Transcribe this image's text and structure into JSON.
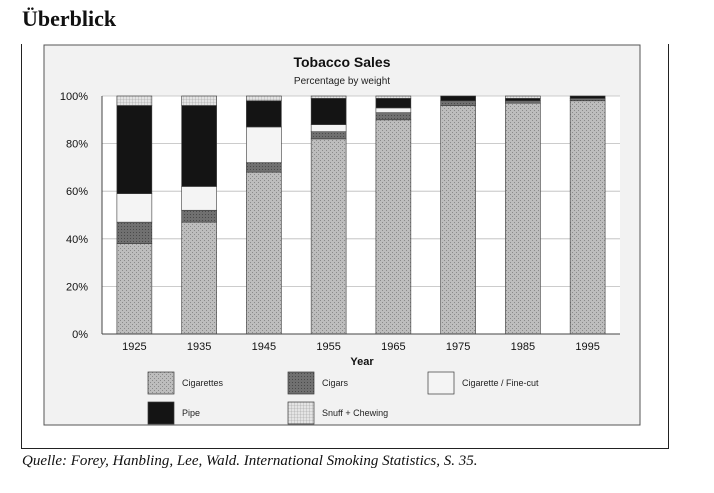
{
  "page": {
    "heading": "Überblick",
    "source": "Quelle: Forey, Hanbling, Lee, Wald. International Smoking Statistics, S. 35."
  },
  "chart_data": {
    "type": "bar",
    "stacked": true,
    "title": "Tobacco Sales",
    "subtitle": "Percentage by weight",
    "xlabel": "Year",
    "ylabel": "",
    "ylim": [
      0,
      100
    ],
    "y_ticks": [
      "0%",
      "20%",
      "40%",
      "60%",
      "80%",
      "100%"
    ],
    "grid": true,
    "legend_position": "bottom",
    "categories": [
      "1925",
      "1935",
      "1945",
      "1955",
      "1965",
      "1975",
      "1985",
      "1995"
    ],
    "series": [
      {
        "name": "Cigarettes",
        "color": "#b9b9b9",
        "values": [
          38,
          47,
          68,
          82,
          90,
          96,
          97,
          98
        ]
      },
      {
        "name": "Cigars",
        "color": "#6e6e6e",
        "values": [
          9,
          5,
          4,
          3,
          3,
          2,
          1,
          1
        ]
      },
      {
        "name": "Cigarette / Fine-cut",
        "color": "#f4f4f4",
        "values": [
          12,
          10,
          15,
          3,
          2,
          0,
          0,
          0
        ]
      },
      {
        "name": "Pipe",
        "color": "#141414",
        "values": [
          37,
          34,
          11,
          11,
          4,
          2,
          1,
          1
        ]
      },
      {
        "name": "Snuff + Chewing",
        "color": "#d6d6d6",
        "values": [
          4,
          4,
          2,
          1,
          1,
          0,
          1,
          0
        ]
      }
    ]
  }
}
